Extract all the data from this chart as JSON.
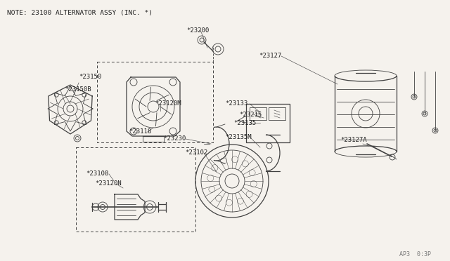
{
  "title_note": "NOTE: 23100 ALTERNATOR ASSY (INC. *)",
  "page_ref": "AP3  0:3P",
  "bg_color": "#f5f2ed",
  "line_color": "#404040",
  "text_color": "#202020",
  "label_color": "#303030",
  "fig_width": 6.4,
  "fig_height": 3.72,
  "dpi": 100,
  "labels": [
    [
      "*23200",
      272,
      42,
      282,
      68,
      "right"
    ],
    [
      "*23150",
      118,
      110,
      118,
      130,
      "left"
    ],
    [
      "*23150B",
      100,
      125,
      100,
      145,
      "left"
    ],
    [
      "*23120M",
      228,
      148,
      228,
      160,
      "left"
    ],
    [
      "*23118",
      198,
      188,
      210,
      175,
      "left"
    ],
    [
      "*23127",
      370,
      80,
      415,
      105,
      "left"
    ],
    [
      "*23133",
      333,
      150,
      365,
      165,
      "left"
    ],
    [
      "*23215",
      348,
      165,
      370,
      175,
      "left"
    ],
    [
      "*23135",
      340,
      178,
      368,
      185,
      "left"
    ],
    [
      "*23135M",
      330,
      195,
      360,
      210,
      "left"
    ],
    [
      "*23230",
      238,
      200,
      270,
      215,
      "left"
    ],
    [
      "*23102",
      268,
      218,
      295,
      235,
      "left"
    ],
    [
      "*23108",
      130,
      248,
      155,
      260,
      "left"
    ],
    [
      "*23120N",
      143,
      262,
      165,
      272,
      "left"
    ],
    [
      "*23127A",
      490,
      198,
      508,
      208,
      "left"
    ]
  ]
}
